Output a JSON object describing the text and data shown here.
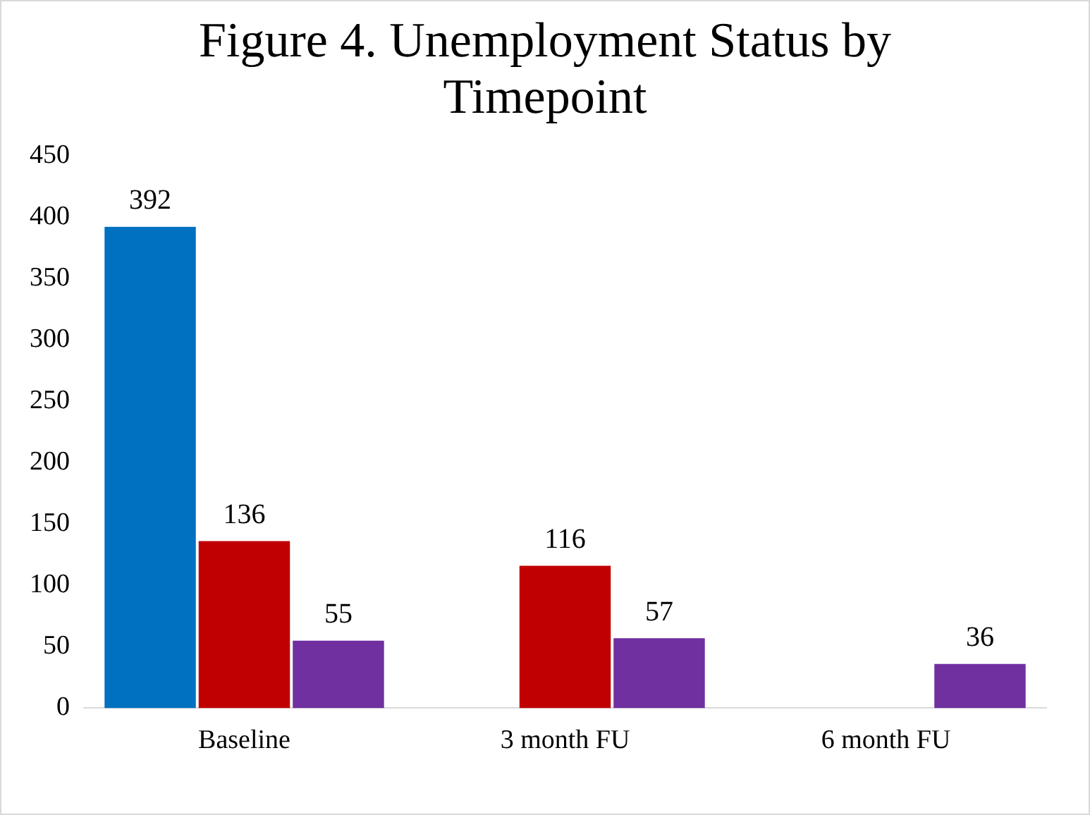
{
  "chart_data": {
    "type": "bar",
    "title": "Figure 4. Unemployment Status by Timepoint",
    "categories": [
      "Baseline",
      "3 month FU",
      "6 month FU"
    ],
    "series": [
      {
        "color": "#0070c0",
        "values": [
          392,
          null,
          null
        ]
      },
      {
        "color": "#c00000",
        "values": [
          136,
          116,
          null
        ]
      },
      {
        "color": "#7030a0",
        "values": [
          55,
          57,
          36
        ]
      }
    ],
    "ylim": [
      0,
      450
    ],
    "yticks": [
      0,
      50,
      100,
      150,
      200,
      250,
      300,
      350,
      400,
      450
    ],
    "grid": false,
    "legend": false,
    "data_labels": true
  }
}
